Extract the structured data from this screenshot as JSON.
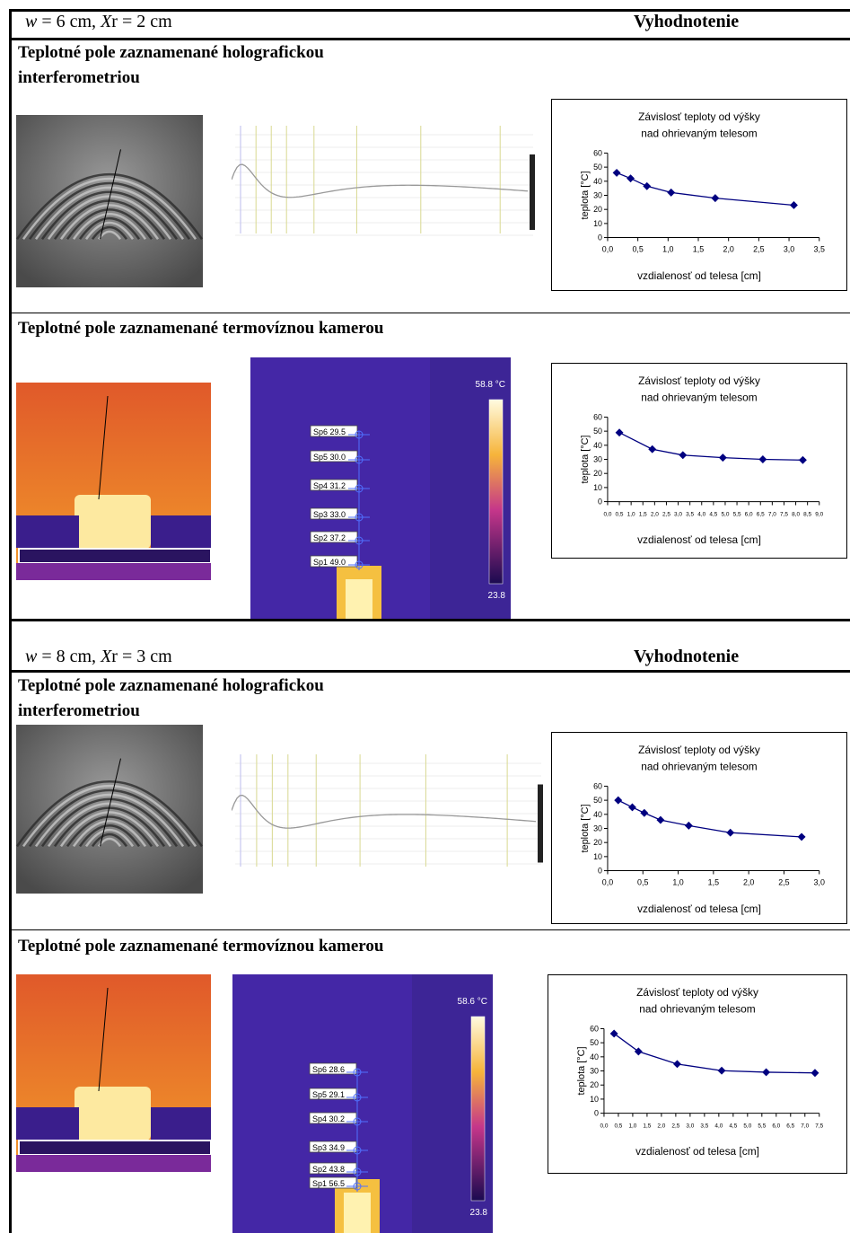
{
  "sections": [
    {
      "heading": [
        "w",
        " = 6 cm, ",
        "X",
        "r = 2 cm"
      ],
      "evaluation": "Vyhodnotenie",
      "holography": {
        "title_lines": [
          "Teplotné pole zaznamenané holografickou",
          "interferometriou"
        ],
        "chart": {
          "type": "line",
          "title": [
            "Závislosť teploty od výšky",
            "nad ohrievaným telesom"
          ],
          "xlabel": "vzdialenosť od telesa [cm]",
          "ylabel": "teplota [°C]",
          "color": "#000080",
          "x": [
            0.15,
            0.38,
            0.65,
            1.05,
            1.78,
            3.08
          ],
          "values": [
            46,
            42,
            36.5,
            32,
            28,
            23
          ],
          "xlim": [
            0,
            3.5
          ],
          "ylim": [
            0,
            60
          ],
          "yticks": [
            0,
            10,
            20,
            30,
            40,
            50,
            60
          ],
          "xticks": [
            {
              "value": 0,
              "label": "0,0"
            },
            {
              "value": 0.5,
              "label": "0,5"
            },
            {
              "value": 1,
              "label": "1,0"
            },
            {
              "value": 1.5,
              "label": "1,5"
            },
            {
              "value": 2,
              "label": "2,0"
            },
            {
              "value": 2.5,
              "label": "2,5"
            },
            {
              "value": 3,
              "label": "3,0"
            },
            {
              "value": 3.5,
              "label": "3,5"
            }
          ]
        }
      },
      "thermal": {
        "title": "Teplotné pole zaznamenané termovíznou kamerou",
        "camera": {
          "scale_max": "58.8 °C",
          "scale_min": "23.8",
          "spots": [
            "Sp6 29.5",
            "Sp5 30.0",
            "Sp4 31.2",
            "Sp3 33.0",
            "Sp2 37.2",
            "Sp1 49.0"
          ]
        },
        "chart": {
          "type": "line",
          "title": [
            "Závislosť teploty od výšky",
            "nad ohrievaným telesom"
          ],
          "xlabel": "vzdialenosť od telesa [cm]",
          "ylabel": "teplota [°C]",
          "color": "#000080",
          "x": [
            0.5,
            1.9,
            3.2,
            4.9,
            6.6,
            8.3
          ],
          "values": [
            49,
            37.2,
            33,
            31.2,
            30,
            29.5
          ],
          "xlim": [
            0,
            9
          ],
          "ylim": [
            0,
            60
          ],
          "yticks": [
            0,
            10,
            20,
            30,
            40,
            50,
            60
          ],
          "xticks": [
            {
              "value": 0,
              "label": "0,0"
            },
            {
              "value": 0.5,
              "label": "0,5"
            },
            {
              "value": 1,
              "label": "1,0"
            },
            {
              "value": 1.5,
              "label": "1,5"
            },
            {
              "value": 2,
              "label": "2,0"
            },
            {
              "value": 2.5,
              "label": "2,5"
            },
            {
              "value": 3,
              "label": "3,0"
            },
            {
              "value": 3.5,
              "label": "3,5"
            },
            {
              "value": 4,
              "label": "4,0"
            },
            {
              "value": 4.5,
              "label": "4,5"
            },
            {
              "value": 5,
              "label": "5,0"
            },
            {
              "value": 5.5,
              "label": "5,5"
            },
            {
              "value": 6,
              "label": "6,0"
            },
            {
              "value": 6.5,
              "label": "6,5"
            },
            {
              "value": 7,
              "label": "7,0"
            },
            {
              "value": 7.5,
              "label": "7,5"
            },
            {
              "value": 8,
              "label": "8,0"
            },
            {
              "value": 8.5,
              "label": "8,5"
            },
            {
              "value": 9,
              "label": "9,0"
            }
          ]
        }
      }
    },
    {
      "heading": [
        "w",
        " = 8 cm, ",
        "X",
        "r = 3 cm"
      ],
      "evaluation": "Vyhodnotenie",
      "holography": {
        "title_lines": [
          "Teplotné pole zaznamenané holografickou",
          "interferometriou"
        ],
        "chart": {
          "type": "line",
          "title": [
            "Závislosť teploty od výšky",
            "nad ohrievaným telesom"
          ],
          "xlabel": "vzdialenosť od telesa [cm]",
          "ylabel": "teplota [°C]",
          "color": "#000080",
          "x": [
            0.15,
            0.35,
            0.52,
            0.75,
            1.15,
            1.74,
            2.75
          ],
          "values": [
            50,
            45,
            41,
            36,
            32,
            27,
            24
          ],
          "xlim": [
            0,
            3
          ],
          "ylim": [
            0,
            60
          ],
          "yticks": [
            0,
            10,
            20,
            30,
            40,
            50,
            60
          ],
          "xticks": [
            {
              "value": 0,
              "label": "0,0"
            },
            {
              "value": 0.5,
              "label": "0,5"
            },
            {
              "value": 1,
              "label": "1,0"
            },
            {
              "value": 1.5,
              "label": "1,5"
            },
            {
              "value": 2,
              "label": "2,0"
            },
            {
              "value": 2.5,
              "label": "2,5"
            },
            {
              "value": 3,
              "label": "3,0"
            }
          ]
        }
      },
      "thermal": {
        "title": "Teplotné pole zaznamenané termovíznou kamerou",
        "camera": {
          "scale_max": "58.6 °C",
          "scale_min": "23.8",
          "spots": [
            "Sp6 28.6",
            "Sp5 29.1",
            "Sp4 30.2",
            "Sp3 34.9",
            "Sp2 43.8",
            "Sp1 56.5"
          ]
        },
        "chart": {
          "type": "line",
          "title": [
            "Závislosť teploty od výšky",
            "nad ohrievaným telesom"
          ],
          "xlabel": "vzdialenosť od telesa [cm]",
          "ylabel": "teplota [°C]",
          "color": "#000080",
          "x": [
            0.35,
            1.2,
            2.55,
            4.1,
            5.65,
            7.35
          ],
          "values": [
            56.5,
            43.8,
            34.9,
            30.2,
            29.1,
            28.6
          ],
          "xlim": [
            0,
            7.5
          ],
          "ylim": [
            0,
            60
          ],
          "yticks": [
            0,
            10,
            20,
            30,
            40,
            50,
            60
          ],
          "xticks": [
            {
              "value": 0,
              "label": "0,0"
            },
            {
              "value": 0.5,
              "label": "0,5"
            },
            {
              "value": 1,
              "label": "1,0"
            },
            {
              "value": 1.5,
              "label": "1,5"
            },
            {
              "value": 2,
              "label": "2,0"
            },
            {
              "value": 2.5,
              "label": "2,5"
            },
            {
              "value": 3,
              "label": "3,0"
            },
            {
              "value": 3.5,
              "label": "3,5"
            },
            {
              "value": 4,
              "label": "4,0"
            },
            {
              "value": 4.5,
              "label": "4,5"
            },
            {
              "value": 5,
              "label": "5,0"
            },
            {
              "value": 5.5,
              "label": "5,5"
            },
            {
              "value": 6,
              "label": "6,0"
            },
            {
              "value": 6.5,
              "label": "6,5"
            },
            {
              "value": 7,
              "label": "7,0"
            },
            {
              "value": 7.5,
              "label": "7,5"
            }
          ]
        }
      }
    }
  ]
}
